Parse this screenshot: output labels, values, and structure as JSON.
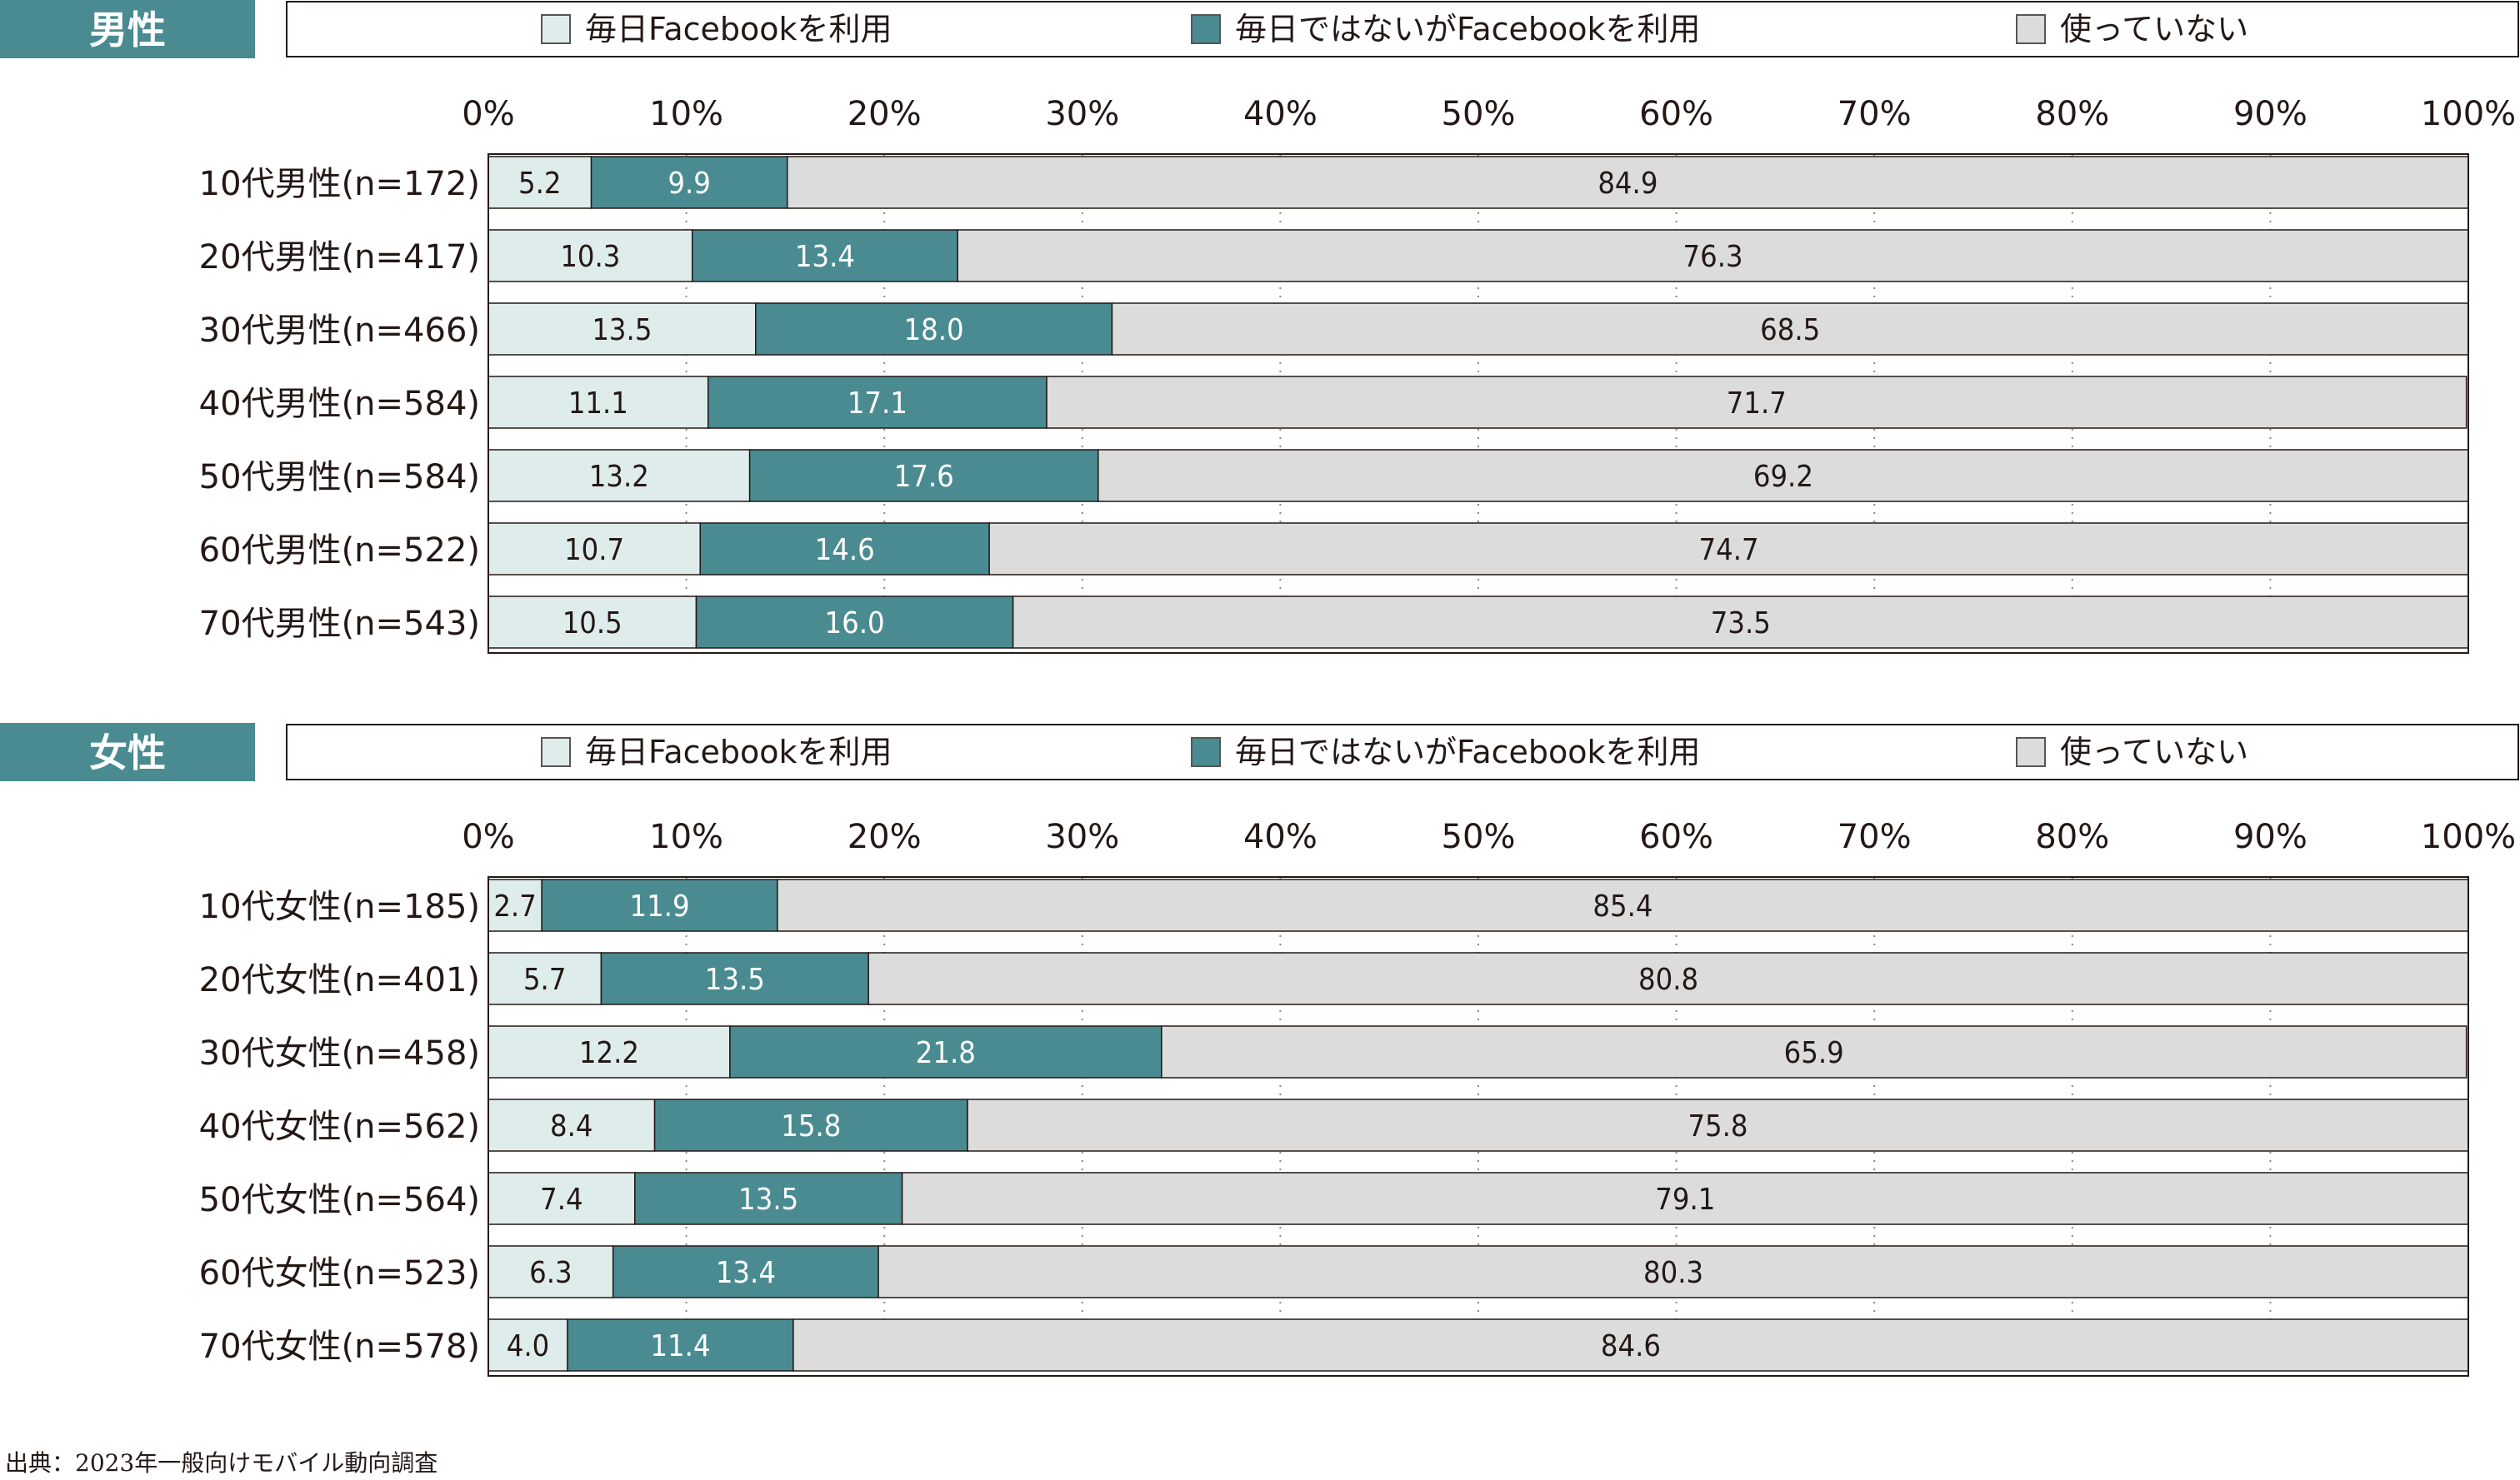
{
  "colors": {
    "header_fill": "#4a8b91",
    "daily": "#dfecec",
    "non_daily": "#4a8b91",
    "unused": "#dcdcdc",
    "text": "#231815",
    "bar_label_light": "#ffffff"
  },
  "legend": {
    "items": [
      {
        "label": "毎日Facebookを利用",
        "swatch": "daily"
      },
      {
        "label": "毎日ではないがFacebookを利用",
        "swatch": "non_daily"
      },
      {
        "label": "使っていない",
        "swatch": "unused"
      }
    ]
  },
  "source": "出典：2023年一般向けモバイル動向調査",
  "chart_data": [
    {
      "type": "bar",
      "orientation": "horizontal",
      "stacked": "100%",
      "title": "男性",
      "categories": [
        "10代男性(n=172)",
        "20代男性(n=417)",
        "30代男性(n=466)",
        "40代男性(n=584)",
        "50代男性(n=584)",
        "60代男性(n=522)",
        "70代男性(n=543)"
      ],
      "series": [
        {
          "name": "毎日Facebookを利用",
          "values": [
            5.2,
            10.3,
            13.5,
            11.1,
            13.2,
            10.7,
            10.5
          ]
        },
        {
          "name": "毎日ではないがFacebookを利用",
          "values": [
            9.9,
            13.4,
            18.0,
            17.1,
            17.6,
            14.6,
            16.0
          ]
        },
        {
          "name": "使っていない",
          "values": [
            84.9,
            76.3,
            68.5,
            71.7,
            69.2,
            74.7,
            73.5
          ]
        }
      ],
      "xlim": [
        0,
        100
      ],
      "xticks": [
        "0%",
        "10%",
        "20%",
        "30%",
        "40%",
        "50%",
        "60%",
        "70%",
        "80%",
        "90%",
        "100%"
      ],
      "grid": true,
      "legend_position": "top"
    },
    {
      "type": "bar",
      "orientation": "horizontal",
      "stacked": "100%",
      "title": "女性",
      "categories": [
        "10代女性(n=185)",
        "20代女性(n=401)",
        "30代女性(n=458)",
        "40代女性(n=562)",
        "50代女性(n=564)",
        "60代女性(n=523)",
        "70代女性(n=578)"
      ],
      "series": [
        {
          "name": "毎日Facebookを利用",
          "values": [
            2.7,
            5.7,
            12.2,
            8.4,
            7.4,
            6.3,
            4.0
          ]
        },
        {
          "name": "毎日ではないがFacebookを利用",
          "values": [
            11.9,
            13.5,
            21.8,
            15.8,
            13.5,
            13.4,
            11.4
          ]
        },
        {
          "name": "使っていない",
          "values": [
            85.4,
            80.8,
            65.9,
            75.8,
            79.1,
            80.3,
            84.6
          ]
        }
      ],
      "xlim": [
        0,
        100
      ],
      "xticks": [
        "0%",
        "10%",
        "20%",
        "30%",
        "40%",
        "50%",
        "60%",
        "70%",
        "80%",
        "90%",
        "100%"
      ],
      "grid": true,
      "legend_position": "top"
    }
  ]
}
